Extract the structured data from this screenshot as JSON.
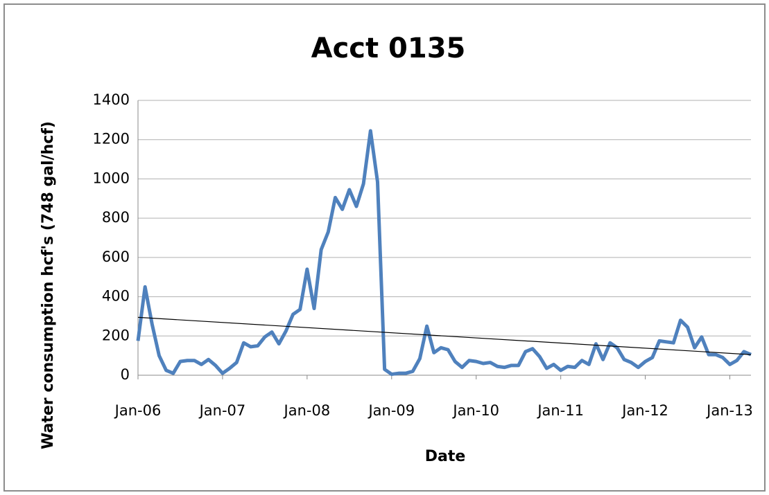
{
  "chart_data": {
    "type": "line",
    "title": "Acct 0135",
    "x_label": "Date",
    "y_label": "Water consumption hcf's (748 gal/hcf)",
    "categories": [
      "Jan-06",
      null,
      null,
      null,
      null,
      null,
      null,
      null,
      null,
      null,
      null,
      null,
      "Jan-07",
      null,
      null,
      null,
      null,
      null,
      null,
      null,
      null,
      null,
      null,
      null,
      "Jan-08",
      null,
      null,
      null,
      null,
      null,
      null,
      null,
      null,
      null,
      null,
      null,
      "Jan-09",
      null,
      null,
      null,
      null,
      null,
      null,
      null,
      null,
      null,
      null,
      null,
      "Jan-10",
      null,
      null,
      null,
      null,
      null,
      null,
      null,
      null,
      null,
      null,
      null,
      "Jan-11",
      null,
      null,
      null,
      null,
      null,
      null,
      null,
      null,
      null,
      null,
      null,
      "Jan-12",
      null,
      null,
      null,
      null,
      null,
      null,
      null,
      null,
      null,
      null,
      null,
      "Jan-13",
      null,
      null,
      null
    ],
    "series": [
      {
        "name": "Acct 0135",
        "color": "#4f81bd",
        "values": [
          175,
          450,
          260,
          100,
          25,
          10,
          70,
          75,
          75,
          55,
          80,
          50,
          10,
          35,
          65,
          165,
          145,
          150,
          195,
          220,
          160,
          225,
          310,
          335,
          540,
          340,
          640,
          730,
          905,
          845,
          945,
          860,
          975,
          1245,
          985,
          30,
          5,
          10,
          10,
          20,
          85,
          250,
          115,
          140,
          130,
          70,
          40,
          75,
          70,
          60,
          65,
          45,
          40,
          50,
          50,
          120,
          135,
          95,
          35,
          55,
          25,
          45,
          40,
          75,
          55,
          160,
          80,
          165,
          140,
          80,
          65,
          40,
          70,
          90,
          175,
          170,
          165,
          280,
          245,
          140,
          195,
          105,
          105,
          90,
          55,
          75,
          120,
          105
        ]
      }
    ],
    "trendline": {
      "start": 295,
      "end": 105,
      "color": "#000000"
    },
    "ylim": [
      0,
      1400
    ],
    "yticks": [
      0,
      200,
      400,
      600,
      800,
      1000,
      1200,
      1400
    ],
    "grid": true
  }
}
